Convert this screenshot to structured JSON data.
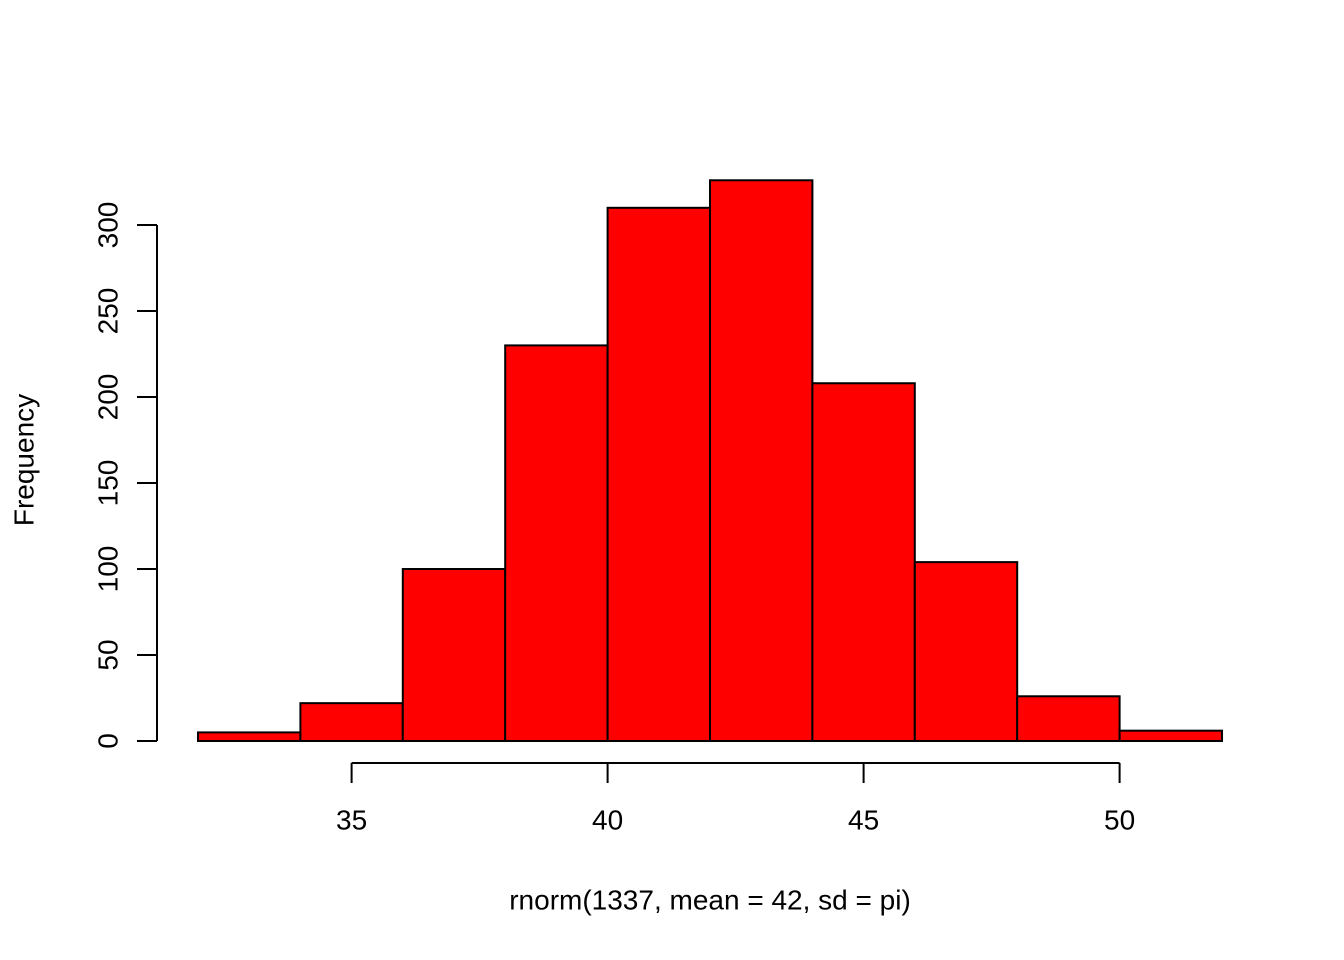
{
  "chart_data": {
    "type": "bar",
    "xlabel": "rnorm(1337, mean = 42, sd = pi)",
    "ylabel": "Frequency",
    "bin_edges": [
      32,
      34,
      36,
      38,
      40,
      42,
      44,
      46,
      48,
      50,
      52
    ],
    "values": [
      5,
      22,
      100,
      230,
      310,
      326,
      208,
      104,
      26,
      6
    ],
    "xlim": [
      32,
      52
    ],
    "ylim": [
      0,
      326
    ],
    "x_ticks": [
      "35",
      "40",
      "45",
      "50"
    ],
    "y_ticks": [
      "0",
      "50",
      "100",
      "150",
      "200",
      "250",
      "300"
    ],
    "bar_color": "#ff0000",
    "grid": false
  }
}
